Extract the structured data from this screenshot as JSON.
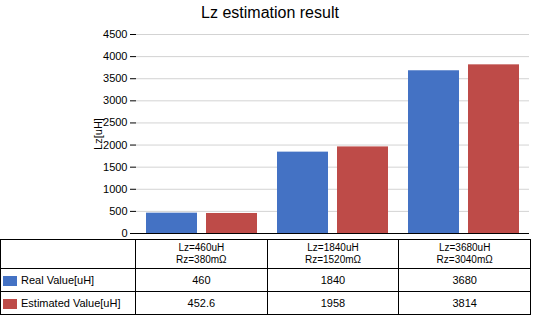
{
  "chart_data": {
    "type": "bar",
    "title": "Lz estimation result",
    "ylabel": "Lz[uH]",
    "categories": [
      "Lz=460uH\nRz=380mΩ",
      "Lz=1840uH\nRz=1520mΩ",
      "Lz=3680uH\nRz=3040mΩ"
    ],
    "series": [
      {
        "name": "Real Value[uH]",
        "color": "#4472C4",
        "values": [
          460,
          1840,
          3680
        ]
      },
      {
        "name": "Estimated Value[uH]",
        "color": "#BE4B48",
        "values": [
          452.6,
          1958,
          3814
        ]
      }
    ],
    "ylim": [
      0,
      4500
    ],
    "yticks": [
      0,
      500,
      1000,
      1500,
      2000,
      2500,
      3000,
      3500,
      4000,
      4500
    ],
    "grid": true,
    "legend": "bottom",
    "data_labels": true
  }
}
